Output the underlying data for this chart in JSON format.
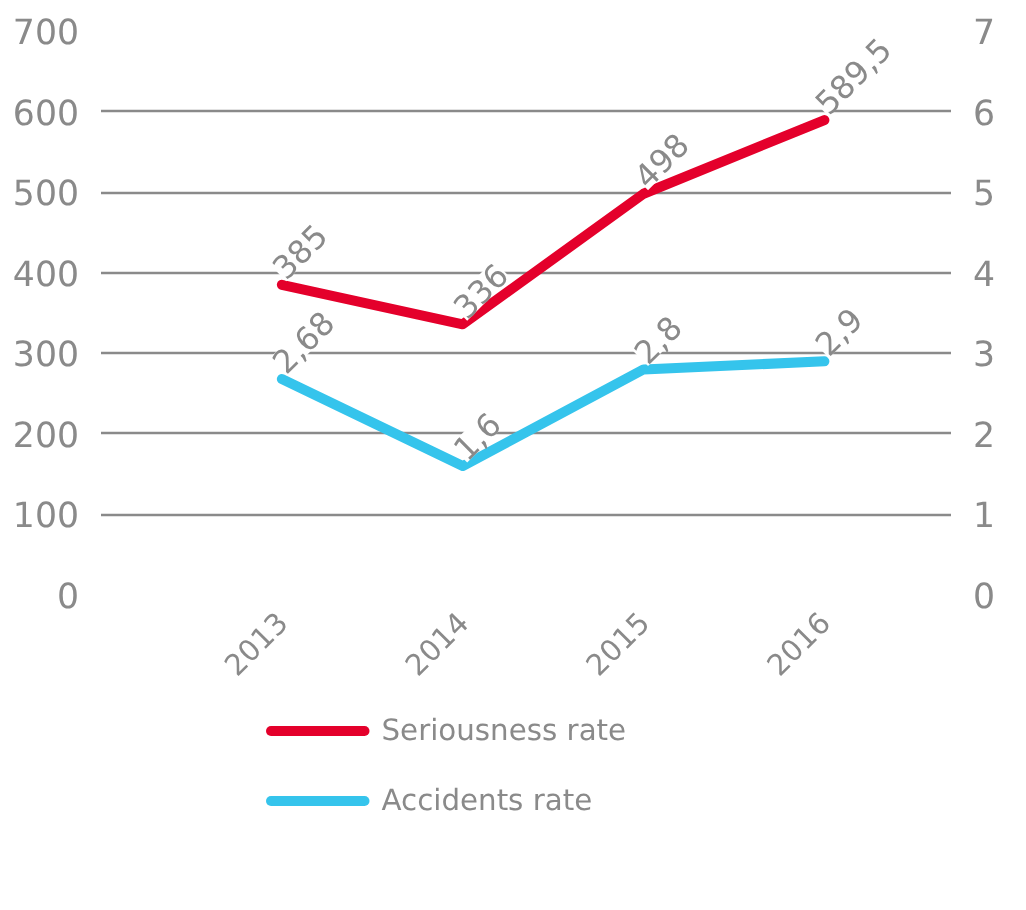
{
  "chart_data": {
    "type": "line",
    "categories": [
      "2013",
      "2014",
      "2015",
      "2016"
    ],
    "series": [
      {
        "name": "Seriousness rate",
        "color": "#e4002b",
        "values": [
          385,
          336,
          498,
          589.5
        ],
        "value_labels": [
          "385",
          "336",
          "498",
          "589,5"
        ]
      },
      {
        "name": "Accidents rate",
        "color": "#35c4ec",
        "values": [
          2.68,
          1.6,
          2.8,
          2.9
        ],
        "axis": "y2",
        "value_labels": [
          "2,68",
          "1,6",
          "2,8",
          "2,9"
        ]
      }
    ],
    "ylim": [
      0,
      700
    ],
    "yticks": [
      0,
      100,
      200,
      300,
      400,
      500,
      600,
      700
    ],
    "y2lim": [
      0,
      7
    ],
    "y2ticks": [
      0,
      1,
      2,
      3,
      4,
      5,
      6,
      7
    ],
    "grid": "y",
    "legend": "bottom",
    "marker": "none",
    "line_style": "solid"
  }
}
